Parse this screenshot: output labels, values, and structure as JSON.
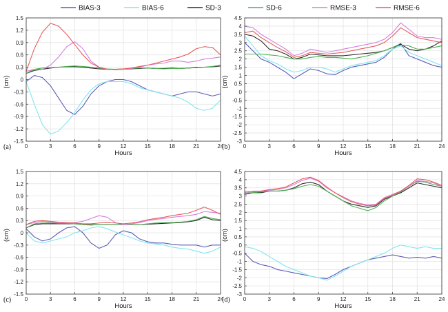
{
  "legend": {
    "items": [
      {
        "name": "BIAS-3",
        "color": "#5a5ab8"
      },
      {
        "name": "BIAS-6",
        "color": "#7fe5f0"
      },
      {
        "name": "SD-3",
        "color": "#2b2b2b"
      },
      {
        "name": "SD-6",
        "color": "#4caf50"
      },
      {
        "name": "RMSE-3",
        "color": "#d77ce0"
      },
      {
        "name": "RMSE-6",
        "color": "#e85a5a"
      }
    ]
  },
  "chart_data": [
    {
      "type": "line",
      "panel_label": "(a)",
      "xlabel": "Hours",
      "ylabel": "(cm)",
      "xlim": [
        0,
        24
      ],
      "ylim": [
        -1.5,
        1.5
      ],
      "xticks": [
        "0",
        "3",
        "6",
        "9",
        "12",
        "15",
        "18",
        "21",
        "24"
      ],
      "yticks": [
        "1.5",
        "1.2",
        "0.9",
        "0.6",
        "0.3",
        "0",
        "-0.3",
        "-0.6",
        "-0.9",
        "-1.2",
        "-1.5"
      ],
      "ytick_values": [
        1.5,
        1.2,
        0.9,
        0.6,
        0.3,
        0,
        -0.3,
        -0.6,
        -0.9,
        -1.2,
        -1.5
      ],
      "x": [
        0,
        1,
        2,
        3,
        4,
        5,
        6,
        7,
        8,
        9,
        10,
        11,
        12,
        13,
        14,
        15,
        16,
        17,
        18,
        19,
        20,
        21,
        22,
        23,
        24
      ],
      "series": [
        {
          "name": "BIAS-3",
          "values": [
            -0.05,
            0.1,
            0.05,
            -0.15,
            -0.45,
            -0.75,
            -0.85,
            -0.65,
            -0.35,
            -0.15,
            -0.05,
            0.0,
            0.0,
            -0.05,
            -0.15,
            -0.25,
            -0.3,
            -0.35,
            -0.4,
            -0.35,
            -0.3,
            -0.3,
            -0.35,
            -0.4,
            -0.35
          ]
        },
        {
          "name": "BIAS-6",
          "values": [
            -0.05,
            -0.6,
            -1.1,
            -1.33,
            -1.25,
            -1.05,
            -0.8,
            -0.5,
            -0.25,
            -0.1,
            -0.05,
            -0.05,
            -0.05,
            -0.1,
            -0.2,
            -0.25,
            -0.3,
            -0.35,
            -0.4,
            -0.45,
            -0.55,
            -0.7,
            -0.75,
            -0.7,
            -0.5
          ]
        },
        {
          "name": "SD-3",
          "values": [
            0.15,
            0.22,
            0.25,
            0.28,
            0.3,
            0.31,
            0.31,
            0.3,
            0.28,
            0.26,
            0.25,
            0.24,
            0.25,
            0.26,
            0.27,
            0.28,
            0.27,
            0.27,
            0.28,
            0.27,
            0.28,
            0.29,
            0.3,
            0.31,
            0.33
          ]
        },
        {
          "name": "SD-6",
          "values": [
            0.15,
            0.25,
            0.28,
            0.29,
            0.3,
            0.32,
            0.33,
            0.32,
            0.3,
            0.28,
            0.26,
            0.25,
            0.26,
            0.27,
            0.28,
            0.28,
            0.27,
            0.26,
            0.27,
            0.27,
            0.28,
            0.3,
            0.3,
            0.32,
            0.35
          ]
        },
        {
          "name": "RMSE-3",
          "values": [
            0.2,
            0.25,
            0.25,
            0.35,
            0.55,
            0.8,
            0.92,
            0.75,
            0.45,
            0.3,
            0.25,
            0.24,
            0.25,
            0.27,
            0.3,
            0.35,
            0.38,
            0.4,
            0.45,
            0.45,
            0.42,
            0.45,
            0.5,
            0.52,
            0.55
          ]
        },
        {
          "name": "RMSE-6",
          "values": [
            0.2,
            0.75,
            1.15,
            1.37,
            1.3,
            1.1,
            0.85,
            0.6,
            0.4,
            0.3,
            0.25,
            0.25,
            0.26,
            0.28,
            0.32,
            0.35,
            0.4,
            0.45,
            0.5,
            0.55,
            0.62,
            0.75,
            0.8,
            0.78,
            0.6
          ]
        }
      ]
    },
    {
      "type": "line",
      "panel_label": "(b)",
      "xlabel": "Hours",
      "ylabel": "(cm)",
      "xlim": [
        0,
        24
      ],
      "ylim": [
        -3,
        4.5
      ],
      "xticks": [
        "0",
        "3",
        "6",
        "9",
        "12",
        "15",
        "18",
        "21",
        "24"
      ],
      "yticks": [
        "4.5",
        "4",
        "3.5",
        "3",
        "2.5",
        "2",
        "1.5",
        "1",
        "0.5",
        "0",
        "-0.5",
        "-1",
        "-1.5",
        "-2",
        "-2.5",
        "-3"
      ],
      "ytick_values": [
        4.5,
        4,
        3.5,
        3,
        2.5,
        2,
        1.5,
        1,
        0.5,
        0,
        -0.5,
        -1,
        -1.5,
        -2,
        -2.5,
        -3
      ],
      "x": [
        0,
        1,
        2,
        3,
        4,
        5,
        6,
        7,
        8,
        9,
        10,
        11,
        12,
        13,
        14,
        15,
        16,
        17,
        18,
        19,
        20,
        21,
        22,
        23,
        24
      ],
      "series": [
        {
          "name": "BIAS-3",
          "values": [
            3.0,
            2.5,
            2.0,
            1.8,
            1.5,
            1.2,
            0.8,
            1.1,
            1.4,
            1.3,
            1.1,
            1.05,
            1.3,
            1.5,
            1.6,
            1.7,
            1.8,
            2.1,
            2.6,
            2.95,
            2.2,
            2.0,
            1.8,
            1.6,
            1.5
          ]
        },
        {
          "name": "BIAS-6",
          "values": [
            3.4,
            2.8,
            2.2,
            1.9,
            1.7,
            1.4,
            1.2,
            1.3,
            1.5,
            1.5,
            1.4,
            1.2,
            1.4,
            1.6,
            1.7,
            1.8,
            1.9,
            2.2,
            2.6,
            2.8,
            2.4,
            2.2,
            2.0,
            1.8,
            1.6
          ]
        },
        {
          "name": "SD-3",
          "values": [
            3.5,
            3.4,
            3.1,
            2.6,
            2.5,
            2.3,
            2.0,
            2.1,
            2.3,
            2.25,
            2.2,
            2.2,
            2.2,
            2.25,
            2.3,
            2.35,
            2.4,
            2.5,
            2.7,
            2.9,
            2.6,
            2.5,
            2.6,
            2.8,
            3.1
          ]
        },
        {
          "name": "SD-6",
          "values": [
            2.3,
            2.3,
            2.3,
            2.25,
            2.2,
            2.1,
            2.0,
            2.0,
            2.1,
            2.15,
            2.1,
            2.1,
            2.05,
            2.0,
            2.1,
            2.2,
            2.35,
            2.5,
            2.7,
            2.85,
            2.8,
            2.6,
            2.6,
            2.7,
            2.8
          ]
        },
        {
          "name": "RMSE-3",
          "values": [
            4.0,
            3.9,
            3.5,
            3.2,
            2.9,
            2.6,
            2.2,
            2.35,
            2.6,
            2.5,
            2.4,
            2.5,
            2.6,
            2.7,
            2.8,
            2.9,
            3.0,
            3.2,
            3.6,
            4.2,
            3.8,
            3.4,
            3.3,
            3.3,
            3.2
          ]
        },
        {
          "name": "RMSE-6",
          "values": [
            3.6,
            3.7,
            3.3,
            3.0,
            2.7,
            2.45,
            2.1,
            2.2,
            2.4,
            2.35,
            2.3,
            2.35,
            2.4,
            2.5,
            2.6,
            2.7,
            2.8,
            3.0,
            3.4,
            3.9,
            3.6,
            3.3,
            3.2,
            3.1,
            3.0
          ]
        }
      ]
    },
    {
      "type": "line",
      "panel_label": "(c)",
      "xlabel": "Hours",
      "ylabel": "(cm)",
      "xlim": [
        0,
        24
      ],
      "ylim": [
        -1.5,
        1.5
      ],
      "xticks": [
        "0",
        "3",
        "6",
        "9",
        "12",
        "15",
        "18",
        "21",
        "24"
      ],
      "yticks": [
        "1.5",
        "1.2",
        "0.9",
        "0.6",
        "0.3",
        "0",
        "-0.3",
        "-0.6",
        "-0.9",
        "-1.2",
        "-1.5"
      ],
      "ytick_values": [
        1.5,
        1.2,
        0.9,
        0.6,
        0.3,
        0,
        -0.3,
        -0.6,
        -0.9,
        -1.2,
        -1.5
      ],
      "x": [
        0,
        1,
        2,
        3,
        4,
        5,
        6,
        7,
        8,
        9,
        10,
        11,
        12,
        13,
        14,
        15,
        16,
        17,
        18,
        19,
        20,
        21,
        22,
        23,
        24
      ],
      "series": [
        {
          "name": "BIAS-3",
          "values": [
            0.1,
            -0.1,
            -0.2,
            -0.15,
            0.0,
            0.12,
            0.15,
            0.0,
            -0.25,
            -0.38,
            -0.3,
            -0.05,
            0.05,
            0.0,
            -0.15,
            -0.22,
            -0.25,
            -0.25,
            -0.28,
            -0.3,
            -0.3,
            -0.3,
            -0.35,
            -0.3,
            -0.3
          ]
        },
        {
          "name": "BIAS-6",
          "values": [
            0.0,
            -0.2,
            -0.25,
            -0.2,
            -0.15,
            -0.1,
            0.0,
            0.05,
            0.12,
            0.15,
            0.1,
            0.02,
            -0.05,
            -0.12,
            -0.2,
            -0.25,
            -0.27,
            -0.3,
            -0.35,
            -0.38,
            -0.4,
            -0.45,
            -0.5,
            -0.45,
            -0.35
          ]
        },
        {
          "name": "SD-3",
          "values": [
            0.12,
            0.2,
            0.22,
            0.22,
            0.22,
            0.22,
            0.22,
            0.2,
            0.19,
            0.2,
            0.2,
            0.2,
            0.2,
            0.2,
            0.2,
            0.21,
            0.22,
            0.23,
            0.24,
            0.25,
            0.27,
            0.3,
            0.38,
            0.32,
            0.3
          ]
        },
        {
          "name": "SD-6",
          "values": [
            0.12,
            0.22,
            0.24,
            0.24,
            0.23,
            0.23,
            0.22,
            0.2,
            0.2,
            0.2,
            0.2,
            0.2,
            0.2,
            0.2,
            0.2,
            0.22,
            0.24,
            0.25,
            0.25,
            0.26,
            0.28,
            0.32,
            0.4,
            0.35,
            0.32
          ]
        },
        {
          "name": "RMSE-3",
          "values": [
            0.2,
            0.25,
            0.28,
            0.26,
            0.25,
            0.24,
            0.25,
            0.28,
            0.35,
            0.42,
            0.38,
            0.25,
            0.2,
            0.22,
            0.25,
            0.3,
            0.33,
            0.35,
            0.38,
            0.4,
            0.42,
            0.45,
            0.52,
            0.5,
            0.48
          ]
        },
        {
          "name": "RMSE-6",
          "values": [
            0.2,
            0.28,
            0.3,
            0.28,
            0.26,
            0.25,
            0.24,
            0.22,
            0.22,
            0.24,
            0.25,
            0.24,
            0.22,
            0.24,
            0.27,
            0.32,
            0.35,
            0.38,
            0.42,
            0.45,
            0.48,
            0.55,
            0.63,
            0.55,
            0.45
          ]
        }
      ]
    },
    {
      "type": "line",
      "panel_label": "(d)",
      "xlabel": "Hours",
      "ylabel": "(cm)",
      "xlim": [
        0,
        24
      ],
      "ylim": [
        -3,
        4.5
      ],
      "xticks": [
        "0",
        "3",
        "6",
        "9",
        "12",
        "15",
        "18",
        "21",
        "24"
      ],
      "yticks": [
        "4.5",
        "4",
        "3.5",
        "3",
        "2.5",
        "2",
        "1.5",
        "1",
        "0.5",
        "0",
        "-0.5",
        "-1",
        "-1.5",
        "-2",
        "-2.5",
        "-3"
      ],
      "ytick_values": [
        4.5,
        4,
        3.5,
        3,
        2.5,
        2,
        1.5,
        1,
        0.5,
        0,
        -0.5,
        -1,
        -1.5,
        -2,
        -2.5,
        -3
      ],
      "x": [
        0,
        1,
        2,
        3,
        4,
        5,
        6,
        7,
        8,
        9,
        10,
        11,
        12,
        13,
        14,
        15,
        16,
        17,
        18,
        19,
        20,
        21,
        22,
        23,
        24
      ],
      "series": [
        {
          "name": "BIAS-3",
          "values": [
            -0.5,
            -1.0,
            -1.2,
            -1.3,
            -1.5,
            -1.6,
            -1.7,
            -1.8,
            -1.9,
            -2.0,
            -2.05,
            -1.8,
            -1.5,
            -1.3,
            -1.1,
            -0.9,
            -0.8,
            -0.7,
            -0.6,
            -0.7,
            -0.8,
            -0.75,
            -0.8,
            -0.7,
            -0.8
          ]
        },
        {
          "name": "BIAS-6",
          "values": [
            -0.1,
            -0.2,
            -0.4,
            -0.7,
            -1.0,
            -1.3,
            -1.5,
            -1.7,
            -1.9,
            -2.0,
            -2.15,
            -1.9,
            -1.6,
            -1.3,
            -1.1,
            -0.9,
            -0.7,
            -0.5,
            -0.2,
            0.0,
            -0.1,
            -0.2,
            -0.1,
            -0.2,
            -0.2
          ]
        },
        {
          "name": "SD-3",
          "values": [
            3.1,
            3.2,
            3.2,
            3.3,
            3.3,
            3.35,
            3.5,
            3.75,
            3.85,
            3.7,
            3.3,
            3.0,
            2.7,
            2.5,
            2.4,
            2.3,
            2.4,
            2.8,
            3.0,
            3.2,
            3.5,
            3.8,
            3.7,
            3.6,
            3.5
          ]
        },
        {
          "name": "SD-6",
          "values": [
            3.2,
            3.2,
            3.25,
            3.3,
            3.3,
            3.35,
            3.45,
            3.6,
            3.7,
            3.6,
            3.3,
            3.0,
            2.7,
            2.4,
            2.25,
            2.1,
            2.3,
            2.7,
            3.0,
            3.25,
            3.6,
            3.9,
            3.85,
            3.7,
            3.6
          ]
        },
        {
          "name": "RMSE-3",
          "values": [
            3.15,
            3.3,
            3.3,
            3.35,
            3.4,
            3.5,
            3.7,
            3.95,
            4.1,
            3.9,
            3.5,
            3.2,
            2.95,
            2.7,
            2.55,
            2.45,
            2.5,
            2.9,
            3.1,
            3.3,
            3.6,
            3.95,
            3.9,
            3.8,
            3.6
          ]
        },
        {
          "name": "RMSE-6",
          "values": [
            3.3,
            3.25,
            3.3,
            3.4,
            3.45,
            3.55,
            3.8,
            4.05,
            4.15,
            3.95,
            3.55,
            3.2,
            2.9,
            2.65,
            2.5,
            2.4,
            2.45,
            2.85,
            3.05,
            3.3,
            3.65,
            4.05,
            4.0,
            3.85,
            3.65
          ]
        }
      ]
    }
  ]
}
